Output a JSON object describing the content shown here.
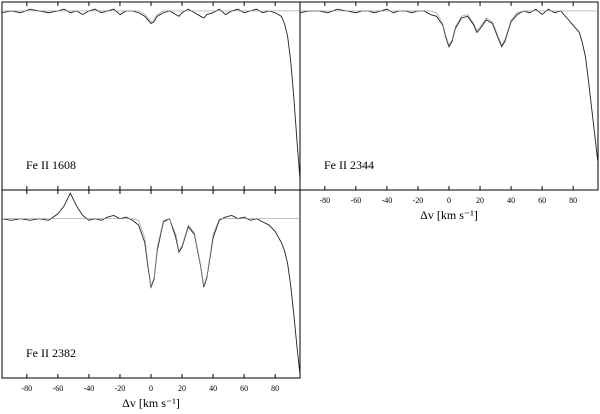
{
  "chart_data": [
    {
      "type": "line",
      "annotation": "Fe II 1608",
      "x": [
        -96,
        -90,
        -84,
        -78,
        -72,
        -66,
        -60,
        -56,
        -52,
        -48,
        -44,
        -40,
        -36,
        -32,
        -28,
        -24,
        -20,
        -16,
        -12,
        -8,
        -4,
        -2,
        0,
        2,
        4,
        8,
        12,
        16,
        18,
        20,
        24,
        28,
        32,
        34,
        36,
        40,
        44,
        48,
        52,
        56,
        60,
        64,
        68,
        72,
        76,
        80,
        84,
        86,
        88,
        90,
        92,
        94,
        96
      ],
      "series": [
        {
          "name": "data",
          "color": "#222222",
          "values": [
            0.99,
            1.0,
            0.99,
            1.01,
            1.0,
            0.99,
            1.0,
            1.01,
            0.99,
            1.0,
            0.98,
            1.0,
            1.01,
            0.99,
            1.0,
            1.01,
            0.98,
            1.0,
            1.0,
            0.99,
            0.97,
            0.95,
            0.93,
            0.94,
            0.97,
            0.99,
            1.0,
            0.98,
            0.97,
            0.99,
            1.01,
            0.99,
            0.97,
            0.96,
            0.98,
            0.99,
            1.01,
            0.98,
            1.0,
            1.01,
            0.99,
            1.0,
            1.01,
            0.99,
            1.0,
            0.99,
            0.97,
            0.93,
            0.86,
            0.72,
            0.52,
            0.28,
            0.06
          ]
        },
        {
          "name": "model",
          "color": "#999999",
          "values": [
            1,
            1,
            1,
            1,
            1,
            1,
            1,
            1,
            1,
            1,
            1,
            1,
            1,
            1,
            1,
            1,
            1,
            1,
            1,
            1,
            0.98,
            0.96,
            0.94,
            0.95,
            0.98,
            1,
            1,
            1,
            1,
            1,
            1,
            1,
            1,
            1,
            1,
            1,
            1,
            1,
            1,
            1,
            1,
            1,
            1,
            1,
            1,
            1,
            1,
            1,
            1,
            1,
            1,
            1,
            1
          ]
        }
      ],
      "xlim": [
        -96,
        96
      ],
      "ylim": [
        0,
        1.05
      ],
      "xticks": [
        -80,
        -60,
        -40,
        -20,
        0,
        20,
        40,
        60,
        80
      ],
      "tick_labels": false
    },
    {
      "type": "line",
      "annotation": "Fe II 2344",
      "xlabel": "Δv [km s⁻¹]",
      "x": [
        -96,
        -90,
        -84,
        -78,
        -72,
        -66,
        -60,
        -56,
        -52,
        -48,
        -44,
        -40,
        -36,
        -32,
        -28,
        -24,
        -20,
        -16,
        -12,
        -8,
        -4,
        -2,
        0,
        2,
        4,
        8,
        12,
        16,
        18,
        20,
        24,
        28,
        32,
        34,
        36,
        40,
        44,
        48,
        52,
        56,
        60,
        64,
        68,
        72,
        76,
        80,
        84,
        86,
        88,
        90,
        92,
        94,
        96
      ],
      "series": [
        {
          "name": "data",
          "color": "#222222",
          "values": [
            0.99,
            1.0,
            1.0,
            0.99,
            1.01,
            1.0,
            0.99,
            1.0,
            1.0,
            0.99,
            1.0,
            1.01,
            0.99,
            1.0,
            1.0,
            0.99,
            1.0,
            1.0,
            0.98,
            0.97,
            0.92,
            0.85,
            0.8,
            0.83,
            0.9,
            0.96,
            0.97,
            0.92,
            0.88,
            0.9,
            0.95,
            0.93,
            0.84,
            0.8,
            0.83,
            0.94,
            0.98,
            1.0,
            0.99,
            1.01,
            0.98,
            1.01,
            0.99,
            1.0,
            0.96,
            0.92,
            0.88,
            0.82,
            0.74,
            0.6,
            0.45,
            0.3,
            0.15
          ]
        },
        {
          "name": "model",
          "color": "#999999",
          "values": [
            1,
            1,
            1,
            1,
            1,
            1,
            1,
            1,
            1,
            1,
            1,
            1,
            1,
            1,
            1,
            1,
            1,
            1,
            1,
            0.99,
            0.93,
            0.86,
            0.81,
            0.84,
            0.91,
            0.97,
            0.98,
            0.93,
            0.89,
            0.91,
            0.96,
            0.94,
            0.85,
            0.81,
            0.84,
            0.95,
            0.99,
            1,
            1,
            1,
            1,
            1,
            1,
            1,
            1,
            1,
            1,
            1,
            1,
            1,
            1,
            1,
            1
          ]
        }
      ],
      "xlim": [
        -96,
        96
      ],
      "ylim": [
        0,
        1.05
      ],
      "xticks": [
        -80,
        -60,
        -40,
        -20,
        0,
        20,
        40,
        60,
        80
      ],
      "tick_labels": true
    },
    {
      "type": "line",
      "annotation": "Fe II 2382",
      "xlabel": "Δv [km s⁻¹]",
      "x": [
        -96,
        -90,
        -84,
        -78,
        -72,
        -66,
        -60,
        -56,
        -52,
        -48,
        -44,
        -40,
        -36,
        -32,
        -28,
        -24,
        -20,
        -16,
        -12,
        -8,
        -4,
        -2,
        0,
        2,
        4,
        8,
        12,
        16,
        18,
        20,
        24,
        28,
        32,
        34,
        36,
        40,
        44,
        48,
        52,
        56,
        60,
        64,
        68,
        72,
        76,
        80,
        84,
        86,
        88,
        90,
        92,
        94,
        96
      ],
      "series": [
        {
          "name": "data",
          "color": "#222222",
          "values": [
            1.0,
            0.99,
            1.0,
            0.99,
            1.0,
            0.99,
            1.03,
            1.08,
            1.16,
            1.08,
            1.02,
            0.99,
            1.0,
            0.99,
            1.01,
            1.02,
            1.0,
            1.01,
            0.99,
            0.96,
            0.85,
            0.7,
            0.57,
            0.62,
            0.8,
            0.98,
            1.0,
            0.88,
            0.79,
            0.82,
            0.95,
            0.9,
            0.7,
            0.57,
            0.63,
            0.88,
            0.99,
            1.01,
            1.02,
            1.0,
            1.01,
            0.99,
            1.0,
            0.98,
            0.96,
            0.92,
            0.85,
            0.8,
            0.72,
            0.58,
            0.4,
            0.2,
            0.02
          ]
        },
        {
          "name": "model",
          "color": "#999999",
          "values": [
            1,
            1,
            1,
            1,
            1,
            1,
            1,
            1,
            1,
            1,
            1,
            1,
            1,
            1,
            1,
            1,
            1,
            1,
            1,
            0.99,
            0.88,
            0.72,
            0.58,
            0.63,
            0.82,
            0.99,
            1.0,
            0.9,
            0.8,
            0.83,
            0.96,
            0.91,
            0.71,
            0.58,
            0.64,
            0.9,
            1,
            1,
            1,
            1,
            1,
            1,
            1,
            1,
            1,
            1,
            1,
            1,
            1,
            1,
            1,
            1,
            1
          ]
        }
      ],
      "xlim": [
        -96,
        96
      ],
      "ylim": [
        0,
        1.18
      ],
      "xticks": [
        -80,
        -60,
        -40,
        -20,
        0,
        20,
        40,
        60,
        80
      ],
      "tick_labels": true
    }
  ]
}
